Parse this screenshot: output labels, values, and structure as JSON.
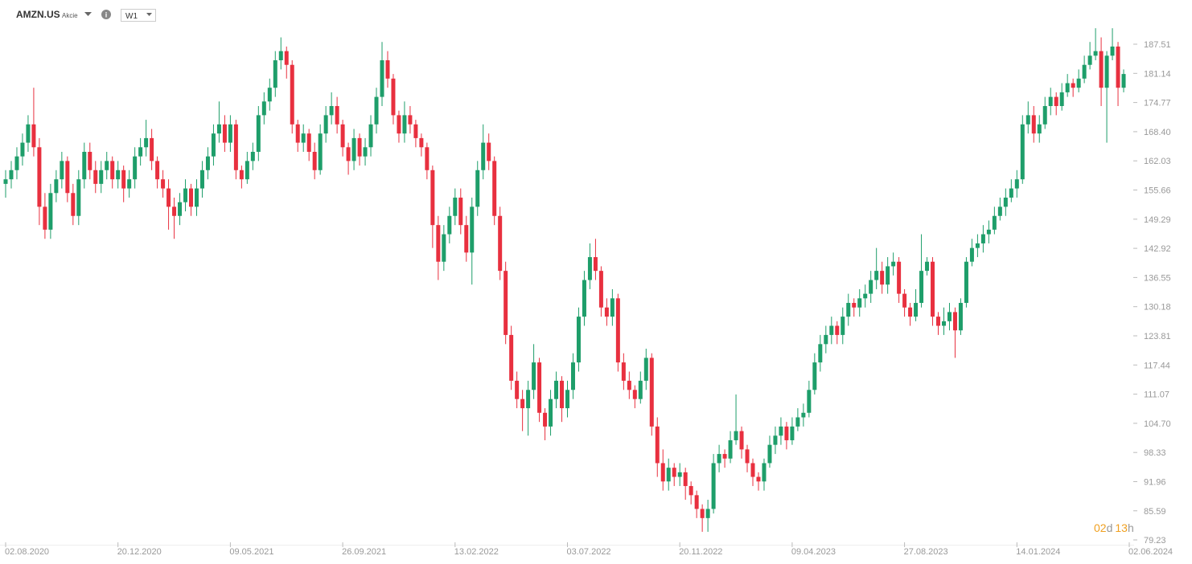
{
  "header": {
    "symbol": "AMZN.US",
    "instrument_type": "Akcie",
    "timeframe": "W1"
  },
  "countdown": {
    "days": "02",
    "days_unit": "d",
    "hours": "13",
    "hours_unit": "h"
  },
  "chart_data": {
    "type": "candlestick",
    "up_color": "#1e9e6a",
    "down_color": "#e8303f",
    "xlim": [
      0,
      200
    ],
    "ylim": [
      77.83,
      191.9
    ],
    "xticks": [
      {
        "value": 0,
        "label": "02.08.2020"
      },
      {
        "value": 20,
        "label": "20.12.2020"
      },
      {
        "value": 40,
        "label": "09.05.2021"
      },
      {
        "value": 60,
        "label": "26.09.2021"
      },
      {
        "value": 80,
        "label": "13.02.2022"
      },
      {
        "value": 100,
        "label": "03.07.2022"
      },
      {
        "value": 120,
        "label": "20.11.2022"
      },
      {
        "value": 140,
        "label": "09.04.2023"
      },
      {
        "value": 160,
        "label": "27.08.2023"
      },
      {
        "value": 180,
        "label": "14.01.2024"
      },
      {
        "value": 200,
        "label": "02.06.2024"
      }
    ],
    "yticks": [
      187.51,
      181.14,
      174.77,
      {
        "value": 168.4,
        "label": "168.40"
      },
      162.03,
      155.66,
      149.29,
      142.92,
      136.55,
      130.18,
      123.81,
      117.44,
      111.07,
      {
        "value": 104.7,
        "label": "104.70"
      },
      98.33,
      91.96,
      85.59,
      79.23
    ],
    "ohlc": [
      [
        157,
        160,
        154,
        158
      ],
      [
        158,
        162,
        156,
        160
      ],
      [
        160,
        165,
        158,
        163
      ],
      [
        163,
        168,
        161,
        166
      ],
      [
        166,
        172,
        164,
        170
      ],
      [
        170,
        178,
        163,
        165
      ],
      [
        165,
        167,
        148,
        152
      ],
      [
        152,
        155,
        145,
        147
      ],
      [
        147,
        157,
        145,
        155
      ],
      [
        155,
        160,
        153,
        158
      ],
      [
        158,
        164,
        156,
        162
      ],
      [
        162,
        163,
        153,
        155
      ],
      [
        155,
        157,
        148,
        150
      ],
      [
        150,
        160,
        148,
        158
      ],
      [
        158,
        166,
        156,
        164
      ],
      [
        164,
        166,
        158,
        160
      ],
      [
        160,
        162,
        155,
        157
      ],
      [
        157,
        162,
        155,
        160
      ],
      [
        160,
        164,
        158,
        162
      ],
      [
        162,
        163,
        156,
        158
      ],
      [
        158,
        162,
        156,
        160
      ],
      [
        160,
        161,
        153,
        156
      ],
      [
        156,
        160,
        154,
        158
      ],
      [
        158,
        165,
        156,
        163
      ],
      [
        163,
        167,
        161,
        165
      ],
      [
        165,
        171,
        163,
        167
      ],
      [
        167,
        169,
        160,
        162
      ],
      [
        162,
        163,
        156,
        158
      ],
      [
        158,
        160,
        154,
        156
      ],
      [
        156,
        158,
        147,
        152
      ],
      [
        152,
        154,
        145,
        150
      ],
      [
        150,
        155,
        148,
        153
      ],
      [
        153,
        158,
        151,
        156
      ],
      [
        156,
        157,
        150,
        152
      ],
      [
        152,
        158,
        150,
        156
      ],
      [
        156,
        162,
        154,
        160
      ],
      [
        160,
        165,
        158,
        163
      ],
      [
        163,
        170,
        161,
        168
      ],
      [
        168,
        175,
        166,
        170
      ],
      [
        170,
        172,
        164,
        166
      ],
      [
        166,
        172,
        164,
        170
      ],
      [
        170,
        171,
        158,
        160
      ],
      [
        160,
        161,
        156,
        158
      ],
      [
        158,
        164,
        157,
        162
      ],
      [
        162,
        166,
        160,
        164
      ],
      [
        164,
        174,
        162,
        172
      ],
      [
        172,
        177,
        170,
        175
      ],
      [
        175,
        180,
        173,
        178
      ],
      [
        178,
        186,
        176,
        184
      ],
      [
        184,
        189,
        182,
        186
      ],
      [
        186,
        187,
        180,
        183
      ],
      [
        183,
        184,
        168,
        170
      ],
      [
        170,
        171,
        164,
        166
      ],
      [
        166,
        170,
        164,
        168
      ],
      [
        168,
        169,
        162,
        164
      ],
      [
        164,
        166,
        158,
        160
      ],
      [
        160,
        170,
        159,
        168
      ],
      [
        168,
        174,
        166,
        172
      ],
      [
        172,
        177,
        170,
        174
      ],
      [
        174,
        176,
        168,
        170
      ],
      [
        170,
        171,
        163,
        165
      ],
      [
        165,
        166,
        159,
        162
      ],
      [
        162,
        169,
        160,
        167
      ],
      [
        167,
        168,
        161,
        163
      ],
      [
        163,
        167,
        161,
        165
      ],
      [
        165,
        172,
        163,
        170
      ],
      [
        170,
        178,
        168,
        176
      ],
      [
        176,
        188,
        174,
        184
      ],
      [
        184,
        186,
        178,
        180
      ],
      [
        180,
        181,
        170,
        172
      ],
      [
        172,
        173,
        166,
        168
      ],
      [
        168,
        175,
        166,
        172
      ],
      [
        172,
        174,
        168,
        170
      ],
      [
        170,
        171,
        165,
        167
      ],
      [
        167,
        168,
        163,
        165
      ],
      [
        165,
        166,
        158,
        160
      ],
      [
        160,
        161,
        143,
        148
      ],
      [
        148,
        150,
        136,
        140
      ],
      [
        140,
        148,
        138,
        146
      ],
      [
        146,
        152,
        144,
        150
      ],
      [
        150,
        156,
        148,
        154
      ],
      [
        154,
        156,
        146,
        148
      ],
      [
        148,
        150,
        140,
        142
      ],
      [
        142,
        154,
        135,
        152
      ],
      [
        152,
        162,
        150,
        160
      ],
      [
        160,
        170,
        158,
        166
      ],
      [
        166,
        168,
        160,
        162
      ],
      [
        162,
        163,
        148,
        150
      ],
      [
        150,
        152,
        136,
        138
      ],
      [
        138,
        140,
        122,
        124
      ],
      [
        124,
        126,
        112,
        114
      ],
      [
        114,
        116,
        108,
        110
      ],
      [
        110,
        112,
        103,
        108
      ],
      [
        108,
        114,
        102,
        112
      ],
      [
        112,
        122,
        110,
        118
      ],
      [
        118,
        119,
        105,
        107
      ],
      [
        107,
        108,
        101,
        104
      ],
      [
        104,
        112,
        102,
        110
      ],
      [
        110,
        116,
        108,
        114
      ],
      [
        114,
        115,
        105,
        108
      ],
      [
        108,
        114,
        106,
        112
      ],
      [
        112,
        120,
        110,
        118
      ],
      [
        118,
        130,
        116,
        128
      ],
      [
        128,
        138,
        126,
        136
      ],
      [
        136,
        144,
        134,
        141
      ],
      [
        141,
        145,
        136,
        138
      ],
      [
        138,
        139,
        128,
        130
      ],
      [
        130,
        132,
        126,
        128
      ],
      [
        128,
        134,
        126,
        132
      ],
      [
        132,
        133,
        116,
        118
      ],
      [
        118,
        120,
        112,
        114
      ],
      [
        114,
        116,
        110,
        112
      ],
      [
        112,
        113,
        108,
        110
      ],
      [
        110,
        116,
        109,
        114
      ],
      [
        114,
        121,
        112,
        119
      ],
      [
        119,
        120,
        102,
        104
      ],
      [
        104,
        106,
        93,
        96
      ],
      [
        96,
        99,
        90,
        92
      ],
      [
        92,
        97,
        90,
        95
      ],
      [
        95,
        96,
        91,
        93
      ],
      [
        93,
        96,
        91,
        94
      ],
      [
        94,
        95,
        88,
        91
      ],
      [
        91,
        92,
        87,
        89
      ],
      [
        89,
        90,
        84,
        86
      ],
      [
        86,
        87,
        81,
        84
      ],
      [
        84,
        88,
        81,
        86
      ],
      [
        86,
        98,
        85,
        96
      ],
      [
        96,
        100,
        94,
        98
      ],
      [
        98,
        99,
        95,
        97
      ],
      [
        97,
        103,
        96,
        101
      ],
      [
        101,
        111,
        100,
        103
      ],
      [
        103,
        104,
        97,
        99
      ],
      [
        99,
        100,
        94,
        96
      ],
      [
        96,
        97,
        91,
        93
      ],
      [
        93,
        94,
        90,
        92
      ],
      [
        92,
        97,
        90,
        96
      ],
      [
        96,
        102,
        95,
        100
      ],
      [
        100,
        104,
        98,
        102
      ],
      [
        102,
        106,
        100,
        104
      ],
      [
        104,
        105,
        99,
        101
      ],
      [
        101,
        106,
        100,
        104
      ],
      [
        104,
        108,
        103,
        106
      ],
      [
        106,
        109,
        104,
        107
      ],
      [
        107,
        114,
        106,
        112
      ],
      [
        112,
        120,
        111,
        118
      ],
      [
        118,
        124,
        116,
        122
      ],
      [
        122,
        126,
        120,
        124
      ],
      [
        124,
        128,
        122,
        126
      ],
      [
        126,
        127,
        122,
        124
      ],
      [
        124,
        130,
        122,
        128
      ],
      [
        128,
        133,
        126,
        131
      ],
      [
        131,
        132,
        128,
        130
      ],
      [
        130,
        134,
        128,
        132
      ],
      [
        132,
        135,
        130,
        133
      ],
      [
        133,
        138,
        131,
        136
      ],
      [
        136,
        143,
        134,
        138
      ],
      [
        138,
        140,
        133,
        135
      ],
      [
        135,
        141,
        133,
        139
      ],
      [
        139,
        142,
        137,
        140
      ],
      [
        140,
        141,
        131,
        133
      ],
      [
        133,
        134,
        128,
        130
      ],
      [
        130,
        131,
        126,
        128
      ],
      [
        128,
        134,
        127,
        131
      ],
      [
        131,
        146,
        130,
        138
      ],
      [
        138,
        141,
        137,
        140
      ],
      [
        140,
        141,
        126,
        128
      ],
      [
        128,
        129,
        124,
        126
      ],
      [
        126,
        130,
        124,
        127
      ],
      [
        127,
        131,
        125,
        129
      ],
      [
        129,
        130,
        119,
        125
      ],
      [
        125,
        132,
        124,
        131
      ],
      [
        131,
        141,
        130,
        140
      ],
      [
        140,
        145,
        139,
        143
      ],
      [
        143,
        146,
        141,
        144
      ],
      [
        144,
        148,
        142,
        146
      ],
      [
        146,
        149,
        144,
        147
      ],
      [
        147,
        152,
        146,
        150
      ],
      [
        150,
        154,
        149,
        152
      ],
      [
        152,
        156,
        150,
        154
      ],
      [
        154,
        158,
        153,
        156
      ],
      [
        156,
        160,
        154,
        158
      ],
      [
        158,
        172,
        157,
        170
      ],
      [
        170,
        175,
        168,
        172
      ],
      [
        172,
        174,
        166,
        168
      ],
      [
        168,
        172,
        166,
        170
      ],
      [
        170,
        176,
        169,
        174
      ],
      [
        174,
        178,
        172,
        176
      ],
      [
        176,
        177,
        172,
        174
      ],
      [
        174,
        179,
        173,
        177
      ],
      [
        177,
        181,
        176,
        179
      ],
      [
        179,
        180,
        176,
        178
      ],
      [
        178,
        182,
        177,
        180
      ],
      [
        180,
        185,
        179,
        183
      ],
      [
        183,
        188,
        182,
        185
      ],
      [
        185,
        191,
        184,
        186
      ],
      [
        186,
        189,
        174,
        178
      ],
      [
        178,
        186,
        166,
        185
      ],
      [
        185,
        191,
        184,
        187
      ],
      [
        187,
        188,
        174,
        178
      ],
      [
        178,
        182,
        177,
        181
      ]
    ]
  }
}
